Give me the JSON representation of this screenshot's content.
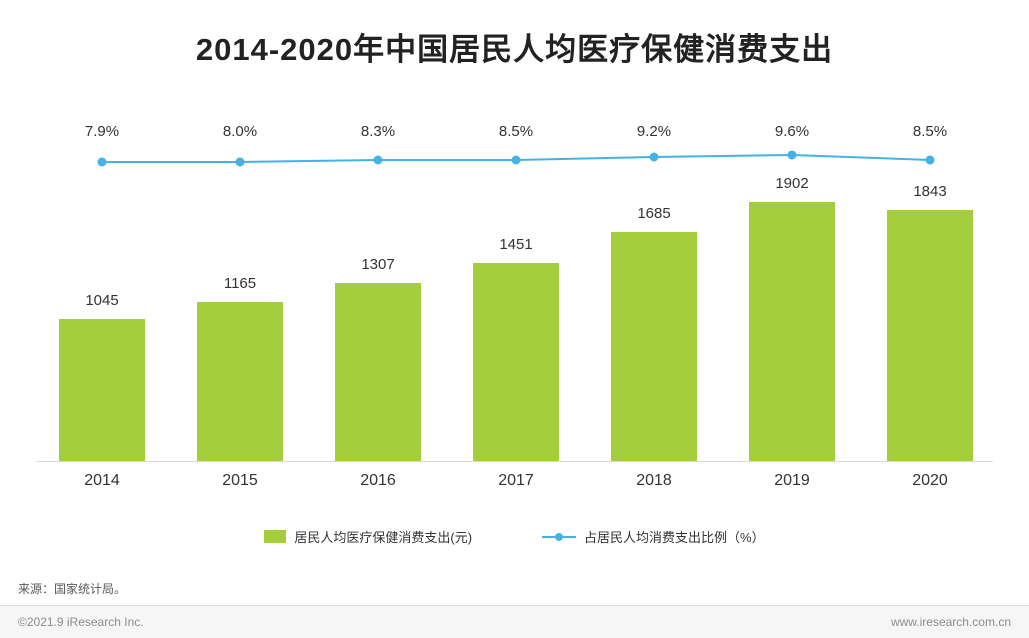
{
  "chart_data": {
    "type": "bar",
    "title": "2014-2020年中国居民人均医疗保健消费支出",
    "categories": [
      "2014",
      "2015",
      "2016",
      "2017",
      "2018",
      "2019",
      "2020"
    ],
    "series": [
      {
        "name": "居民人均医疗保健消费支出(元)",
        "type": "bar",
        "values": [
          1045,
          1165,
          1307,
          1451,
          1685,
          1902,
          1843
        ],
        "color": "#a3cd3a"
      },
      {
        "name": "占居民人均消费支出比例（%）",
        "type": "line",
        "values": [
          7.9,
          8.0,
          8.3,
          8.5,
          9.2,
          9.6,
          8.5
        ],
        "color": "#44b3e4"
      }
    ],
    "ylim": [
      0,
      1902
    ],
    "grid": false,
    "legend_position": "bottom"
  },
  "source": "来源：国家统计局。",
  "footer": {
    "left": "©2021.9 iResearch Inc.",
    "right": "www.iresearch.com.cn"
  }
}
